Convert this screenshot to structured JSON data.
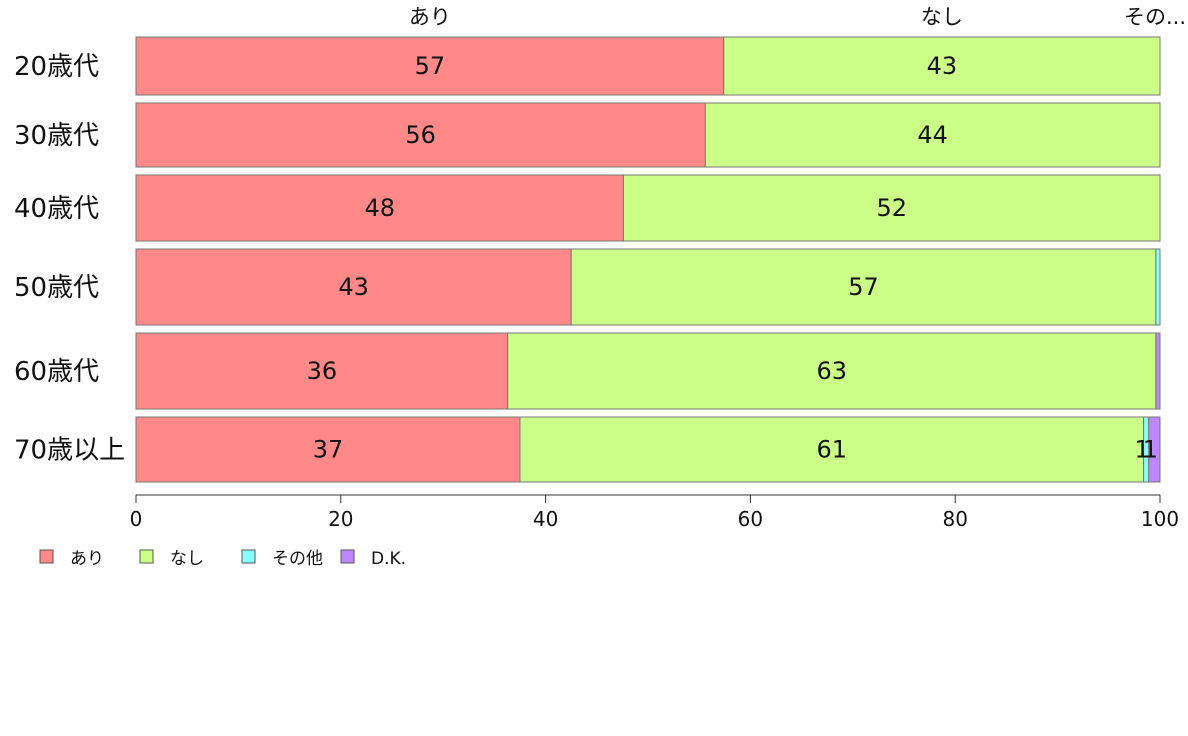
{
  "chart_data": {
    "type": "bar",
    "orientation": "horizontal",
    "stacked": true,
    "categories": [
      "20歳代",
      "30歳代",
      "40歳代",
      "50歳代",
      "60歳代",
      "70歳以上"
    ],
    "series": [
      {
        "name": "あり",
        "color": "#FF8888",
        "values": [
          57.4,
          55.6,
          47.6,
          42.5,
          36.3,
          37.5
        ],
        "labels": [
          "57",
          "56",
          "48",
          "43",
          "36",
          "37"
        ]
      },
      {
        "name": "なし",
        "color": "#CCFF88",
        "values": [
          42.6,
          44.4,
          52.4,
          57.1,
          63.3,
          60.9
        ],
        "labels": [
          "43",
          "44",
          "52",
          "57",
          "63",
          "61"
        ]
      },
      {
        "name": "その他",
        "color": "#88FFFF",
        "values": [
          0,
          0,
          0,
          0.4,
          0,
          0.5
        ],
        "labels": [
          "",
          "",
          "",
          "",
          "",
          "1"
        ]
      },
      {
        "name": "D.K.",
        "color": "#BB88FF",
        "values": [
          0,
          0,
          0,
          0,
          0.4,
          1.1
        ],
        "labels": [
          "",
          "",
          "",
          "",
          "",
          "1"
        ]
      }
    ],
    "top_labels": [
      "あり",
      "なし",
      "その..."
    ],
    "xlim": [
      0,
      100
    ],
    "x_ticks": [
      "0",
      "20",
      "40",
      "60",
      "80",
      "100"
    ],
    "grid": false,
    "legend_position": "bottom-left"
  }
}
